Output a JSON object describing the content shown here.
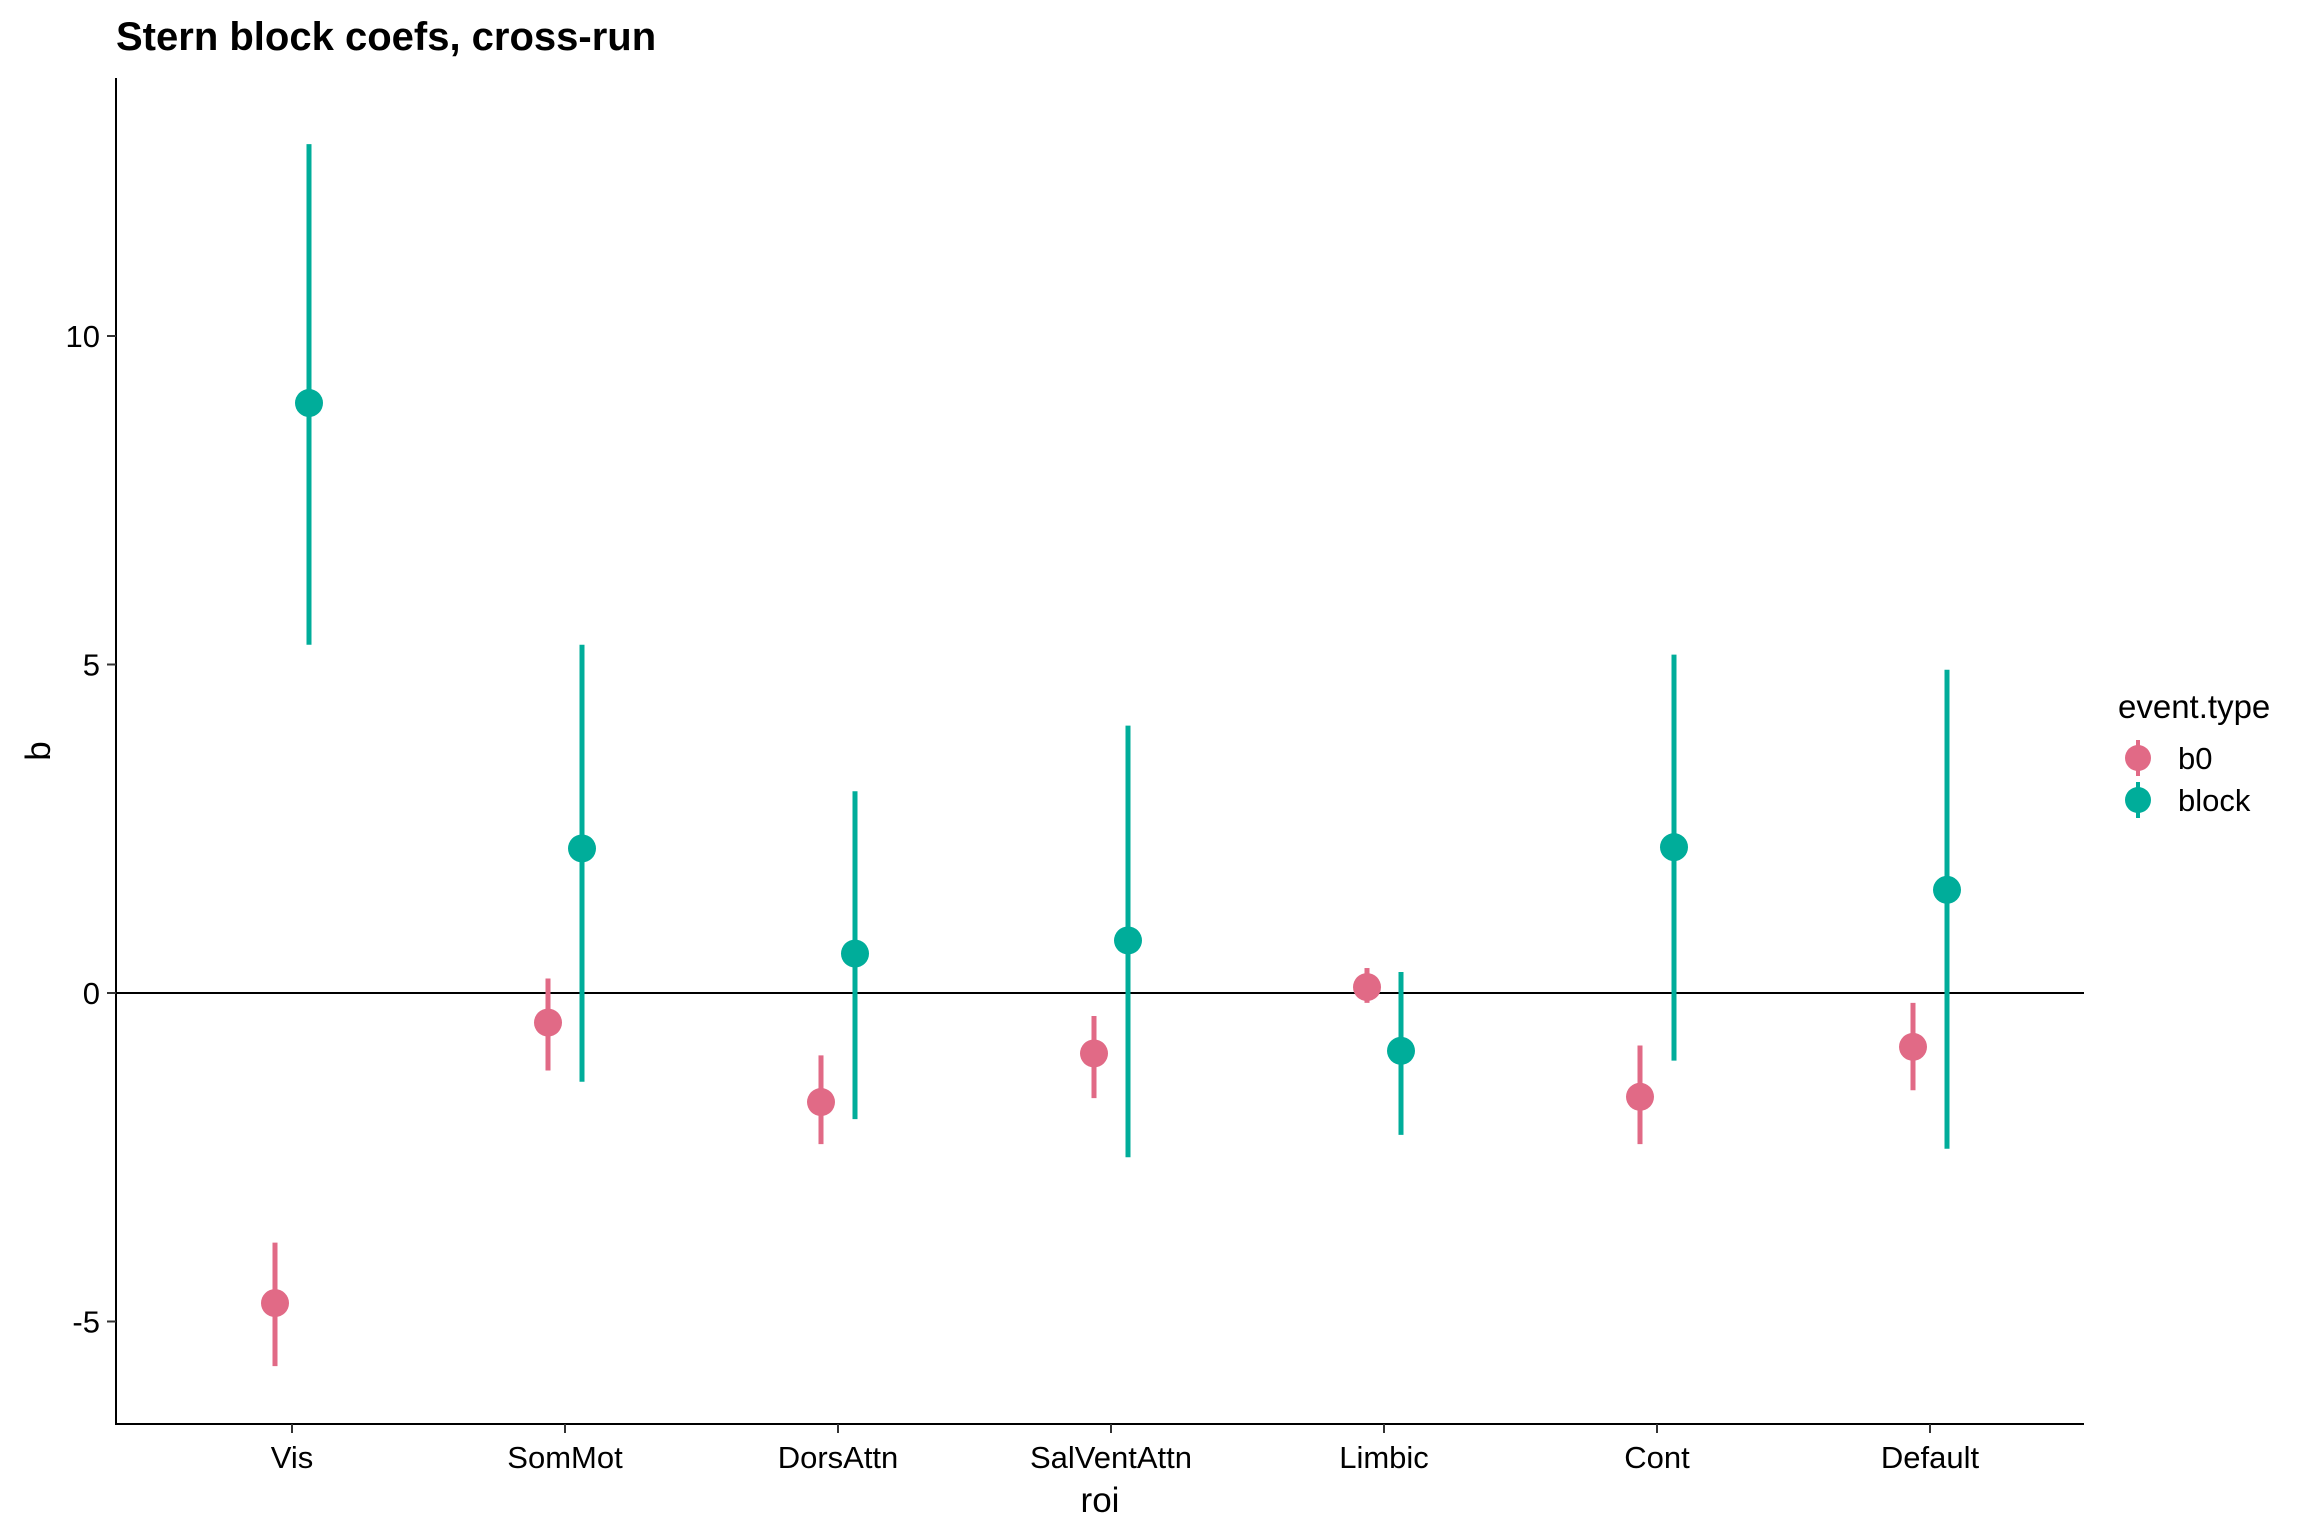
{
  "chart_data": {
    "type": "scatter",
    "title": "Stern block coefs, cross-run",
    "xlabel": "roi",
    "ylabel": "b",
    "categories": [
      "Vis",
      "SomMot",
      "DorsAttn",
      "SalVentAttn",
      "Limbic",
      "Cont",
      "Default"
    ],
    "yticks": [
      -5,
      0,
      5,
      10
    ],
    "ytick_labels": [
      "-5",
      "0",
      "5",
      "10"
    ],
    "ylim": [
      -6.6,
      13.9
    ],
    "hline": 0,
    "grid": false,
    "legend": {
      "title": "event.type",
      "position": "right"
    },
    "series": [
      {
        "name": "b0",
        "color": "#E16A86",
        "values": [
          -4.72,
          -0.45,
          -1.66,
          -0.92,
          0.09,
          -1.58,
          -0.82
        ],
        "lower": [
          -5.68,
          -1.18,
          -2.3,
          -1.6,
          -0.15,
          -2.3,
          -1.48
        ],
        "upper": [
          -3.8,
          0.22,
          -0.95,
          -0.35,
          0.38,
          -0.8,
          -0.15
        ]
      },
      {
        "name": "block",
        "color": "#00AD9A",
        "values": [
          8.98,
          2.2,
          0.6,
          0.8,
          -0.88,
          2.22,
          1.57
        ],
        "lower": [
          5.3,
          -1.35,
          -1.92,
          -2.5,
          -2.16,
          -1.03,
          -2.37
        ],
        "upper": [
          12.92,
          5.3,
          3.07,
          4.07,
          0.32,
          5.15,
          4.92
        ]
      }
    ]
  }
}
